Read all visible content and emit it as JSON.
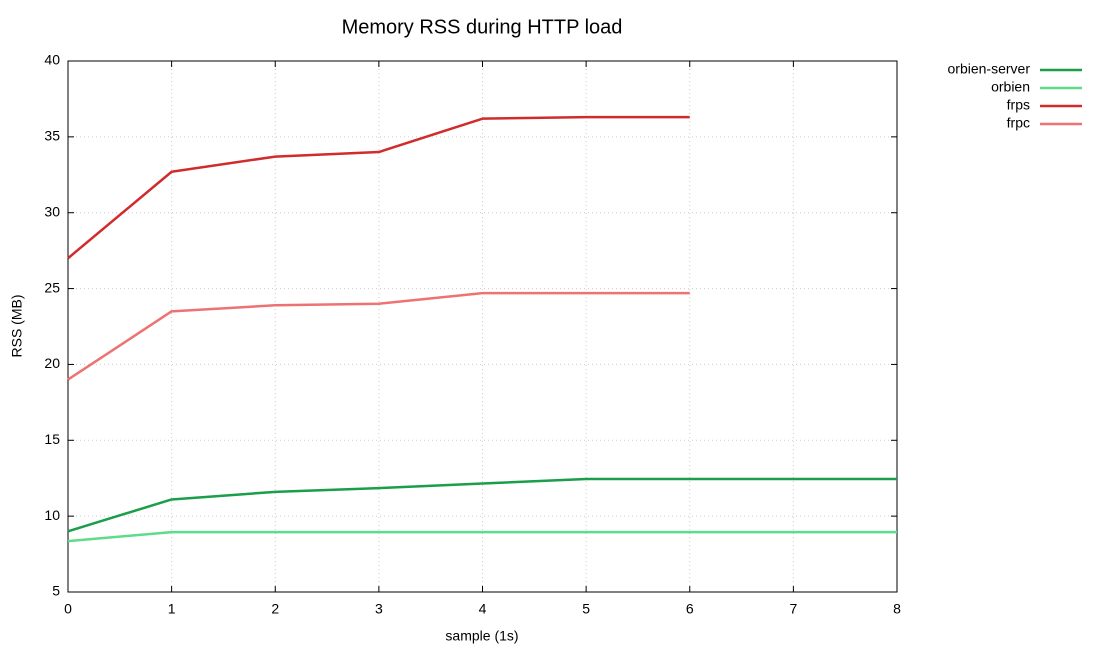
{
  "chart_data": {
    "type": "line",
    "title": "Memory RSS during HTTP load",
    "x_label": "sample (1s)",
    "y_label": "RSS (MB)",
    "x": [
      0,
      1,
      2,
      3,
      4,
      5,
      6,
      7,
      8
    ],
    "xlim": [
      0,
      8
    ],
    "xticks": [
      0,
      1,
      2,
      3,
      4,
      5,
      6,
      7,
      8
    ],
    "ylim": [
      5,
      40
    ],
    "yticks": [
      5,
      10,
      15,
      20,
      25,
      30,
      35,
      40
    ],
    "grid": true,
    "legend": "outside-top-right",
    "series": [
      {
        "name": "orbien-server",
        "color": "#1a9e4a",
        "values": [
          9.0,
          11.1,
          11.6,
          11.85,
          12.15,
          12.45,
          12.45,
          12.45,
          12.45
        ]
      },
      {
        "name": "orbien",
        "color": "#5ddc8a",
        "values": [
          8.35,
          8.95,
          8.95,
          8.95,
          8.95,
          8.95,
          8.95,
          8.95,
          8.95
        ]
      },
      {
        "name": "frps",
        "color": "#d12b2b",
        "values": [
          27.0,
          32.7,
          33.7,
          34.0,
          36.2,
          36.3,
          36.3,
          null,
          null
        ]
      },
      {
        "name": "frpc",
        "color": "#ee7272",
        "values": [
          19.0,
          23.5,
          23.9,
          24.0,
          24.7,
          24.7,
          24.7,
          null,
          null
        ]
      }
    ]
  }
}
